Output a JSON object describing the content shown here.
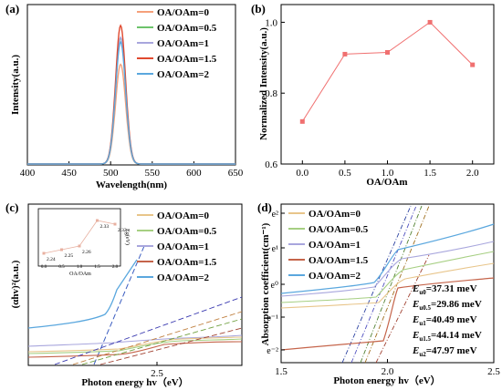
{
  "panels": {
    "a": {
      "label": "(a)",
      "chart_data": {
        "type": "line",
        "xlabel": "Wavelength(nm)",
        "ylabel": "Intensity(a.u.)",
        "xlim": [
          400,
          650
        ],
        "xticks": [
          400,
          450,
          500,
          550,
          600,
          650
        ],
        "peak_center_nm": 512,
        "peak_width_nm": 13,
        "series": [
          {
            "name": "OA/OAm=0",
            "color": "#f5a07a",
            "peak": 0.72
          },
          {
            "name": "OA/OAm=0.5",
            "color": "#6cc36b",
            "peak": 0.91
          },
          {
            "name": "OA/OAm=1",
            "color": "#a8a6dd",
            "peak": 0.915
          },
          {
            "name": "OA/OAm=1.5",
            "color": "#e0492f",
            "peak": 1.0
          },
          {
            "name": "OA/OAm=2",
            "color": "#5aa7de",
            "peak": 0.88
          }
        ]
      }
    },
    "b": {
      "label": "(b)",
      "chart_data": {
        "type": "line",
        "xlabel": "OA/OAm",
        "ylabel": "Normalized Intensity(a.u.)",
        "x": [
          0,
          0.5,
          1.0,
          1.5,
          2.0
        ],
        "y": [
          0.72,
          0.91,
          0.915,
          1.0,
          0.88
        ],
        "xlim": [
          -0.25,
          2.25
        ],
        "ylim": [
          0.6,
          1.05
        ],
        "xticks": [
          "0.0",
          "0.5",
          "1.0",
          "1.5",
          "2.0"
        ],
        "yticks": [
          "0.6",
          "0.8",
          "1.0"
        ],
        "color": "#f07070"
      }
    },
    "c": {
      "label": "(c)",
      "chart_data": {
        "type": "line",
        "xlabel": "Photon energy hv（eV）",
        "ylabel": "(αhv)²(a.u.)",
        "xtick": "2.5",
        "legend": [
          "OA/OAm=0",
          "OA/OAm=0.5",
          "OA/OAm=1",
          "OA/OAm=1.5",
          "OA/OAm=2"
        ],
        "colors": [
          "#e8c58a",
          "#a6cf82",
          "#a8a6dd",
          "#c5644a",
          "#5aa7de"
        ],
        "inset": {
          "type": "line",
          "xlabel": "OA/OAm",
          "ylabel": "Eg(eV)",
          "x": [
            0,
            0.5,
            1.0,
            1.5,
            2.0
          ],
          "y": [
            2.24,
            2.25,
            2.26,
            2.33,
            2.32
          ],
          "point_labels": [
            "2.24",
            "2.25",
            "2.26",
            "2.33",
            "2.32"
          ],
          "xticks": [
            "0.0",
            "0.5",
            "1.0",
            "1.5",
            "2.0"
          ],
          "color": "#e8b0a0"
        }
      }
    },
    "d": {
      "label": "(d)",
      "chart_data": {
        "type": "line",
        "xlabel": "Photon energy hv（eV）",
        "ylabel": "Absorption coefficient(cm⁻¹)",
        "xlim": [
          1.5,
          2.5
        ],
        "xticks": [
          "1.5",
          "2.0",
          "2.5"
        ],
        "yticks": [
          "e⁻²",
          "e⁻¹",
          "e⁰",
          "e¹",
          "e²"
        ],
        "legend": [
          "OA/OAm=0",
          "OA/OAm=0.5",
          "OA/OAm=1",
          "OA/OAm=1.5",
          "OA/OAm=2"
        ],
        "colors": [
          "#e8c58a",
          "#a6cf82",
          "#a8a6dd",
          "#c5644a",
          "#5aa7de"
        ],
        "urbach": [
          {
            "sub": "u0",
            "value": "=37.31 meV"
          },
          {
            "sub": "u0.5",
            "value": "=29.86 meV"
          },
          {
            "sub": "u1",
            "value": "=40.49 meV"
          },
          {
            "sub": "u1.5",
            "value": "=44.14 meV"
          },
          {
            "sub": "u2",
            "value": "=47.97 meV"
          }
        ]
      }
    }
  }
}
